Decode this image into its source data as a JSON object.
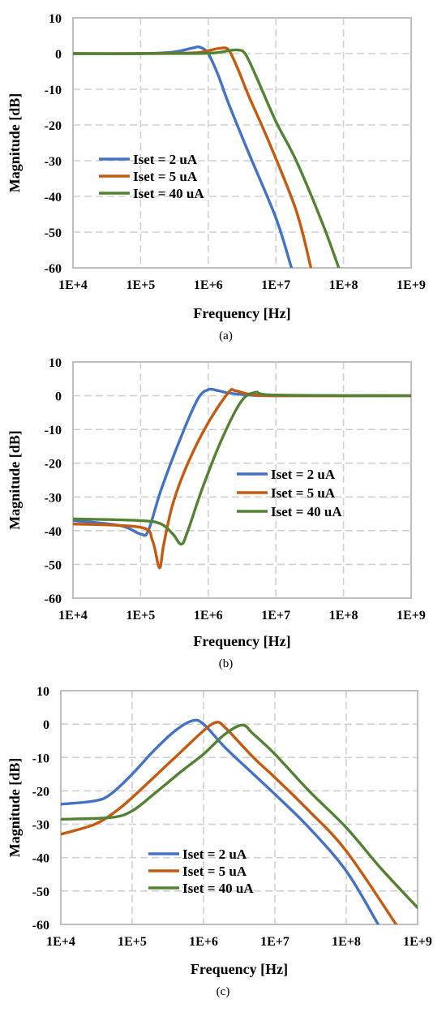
{
  "chart_data": [
    {
      "type": "line",
      "caption": "(a)",
      "xlabel": "Frequency [Hz]",
      "ylabel": "Magnitude [dB]",
      "xscale": "log",
      "xlim": [
        10000,
        1000000000
      ],
      "ylim": [
        -60,
        10
      ],
      "x_ticks": [
        "1E+4",
        "1E+5",
        "1E+6",
        "1E+7",
        "1E+8",
        "1E+9"
      ],
      "y_ticks": [
        "10",
        "0",
        "-10",
        "-20",
        "-30",
        "-40",
        "-50",
        "-60"
      ],
      "grid": true,
      "legend_position": "center-left",
      "series": [
        {
          "name": "Iset = 2 uA",
          "color": "#4472C4",
          "x": [
            10000,
            100000,
            300000,
            600000,
            750000,
            1000000,
            1400000,
            2000000,
            4000000,
            10000000,
            17000000
          ],
          "y": [
            0,
            0,
            0.4,
            1.6,
            1.8,
            0,
            -6,
            -14,
            -28,
            -46,
            -60
          ]
        },
        {
          "name": "Iset = 5 uA",
          "color": "#C55A11",
          "x": [
            10000,
            100000,
            600000,
            1000000,
            1500000,
            2000000,
            2700000,
            4000000,
            8000000,
            20000000,
            33000000
          ],
          "y": [
            0,
            0,
            0.2,
            0.8,
            1.5,
            1,
            -4,
            -12,
            -25,
            -44,
            -60
          ]
        },
        {
          "name": "Iset = 40 uA",
          "color": "#548235",
          "x": [
            10000,
            100000,
            1000000,
            2000000,
            2700000,
            3500000,
            5000000,
            10000000,
            20000000,
            50000000,
            85000000
          ],
          "y": [
            0,
            0,
            0.1,
            0.8,
            1,
            0,
            -6,
            -19,
            -30,
            -48,
            -60
          ]
        }
      ]
    },
    {
      "type": "line",
      "caption": "(b)",
      "xlabel": "Frequency [Hz]",
      "ylabel": "Magnitude [dB]",
      "xscale": "log",
      "xlim": [
        10000,
        1000000000
      ],
      "ylim": [
        -60,
        10
      ],
      "x_ticks": [
        "1E+4",
        "1E+5",
        "1E+6",
        "1E+7",
        "1E+8",
        "1E+9"
      ],
      "y_ticks": [
        "10",
        "0",
        "-10",
        "-20",
        "-30",
        "-40",
        "-50",
        "-60"
      ],
      "grid": true,
      "legend_position": "center-right",
      "series": [
        {
          "name": "Iset = 2 uA",
          "color": "#4472C4",
          "x": [
            10000,
            50000,
            100000,
            130000,
            200000,
            400000,
            700000,
            1000000,
            1400000,
            2000000,
            4000000,
            10000000,
            1000000000
          ],
          "y": [
            -37,
            -38.5,
            -41,
            -40,
            -28,
            -12,
            -1,
            1.8,
            1.5,
            0.8,
            0.2,
            0,
            0
          ]
        },
        {
          "name": "Iset = 5 uA",
          "color": "#C55A11",
          "x": [
            10000,
            100000,
            150000,
            190000,
            220000,
            300000,
            500000,
            1000000,
            2000000,
            2500000,
            4000000,
            10000000,
            1000000000
          ],
          "y": [
            -38,
            -39,
            -43,
            -51,
            -44,
            -32,
            -20,
            -8,
            1,
            1.5,
            0.5,
            0,
            0
          ]
        },
        {
          "name": "Iset = 40 uA",
          "color": "#548235",
          "x": [
            10000,
            100000,
            200000,
            300000,
            400000,
            500000,
            800000,
            1500000,
            3000000,
            5000000,
            10000000,
            1000000000
          ],
          "y": [
            -36.5,
            -37,
            -38,
            -41,
            -44,
            -40,
            -28,
            -14,
            -2,
            1,
            0.2,
            0
          ]
        }
      ]
    },
    {
      "type": "line",
      "caption": "(c)",
      "xlabel": "Frequency [Hz]",
      "ylabel": "Magnitude [dB]",
      "xscale": "log",
      "xlim": [
        10000,
        1000000000
      ],
      "ylim": [
        -60,
        10
      ],
      "x_ticks": [
        "1E+4",
        "1E+5",
        "1E+6",
        "1E+7",
        "1E+8",
        "1E+9"
      ],
      "y_ticks": [
        "10",
        "0",
        "-10",
        "-20",
        "-30",
        "-40",
        "-50",
        "-60"
      ],
      "grid": true,
      "legend_position": "center",
      "series": [
        {
          "name": "Iset = 2 uA",
          "color": "#4472C4",
          "x": [
            10000,
            30000,
            50000,
            100000,
            200000,
            400000,
            700000,
            1000000,
            2000000,
            5000000,
            10000000,
            30000000,
            100000000,
            280000000
          ],
          "y": [
            -24,
            -23,
            -21,
            -15,
            -8,
            -2,
            1,
            0,
            -7,
            -15,
            -21,
            -31,
            -44,
            -60
          ]
        },
        {
          "name": "Iset = 5 uA",
          "color": "#C55A11",
          "x": [
            10000,
            30000,
            60000,
            100000,
            200000,
            500000,
            1000000,
            1500000,
            2000000,
            5000000,
            10000000,
            30000000,
            100000000,
            500000000
          ],
          "y": [
            -33,
            -30,
            -26,
            -22,
            -16,
            -8,
            -2,
            0.5,
            -1,
            -10,
            -16,
            -26,
            -38,
            -60
          ]
        },
        {
          "name": "Iset = 40 uA",
          "color": "#548235",
          "x": [
            10000,
            50000,
            100000,
            200000,
            500000,
            1000000,
            2000000,
            3500000,
            5000000,
            10000000,
            30000000,
            100000000,
            300000000,
            1000000000
          ],
          "y": [
            -28.5,
            -28,
            -26,
            -21,
            -14,
            -9,
            -3,
            -0.3,
            -3,
            -9,
            -20,
            -31,
            -43,
            -55
          ]
        }
      ]
    }
  ]
}
